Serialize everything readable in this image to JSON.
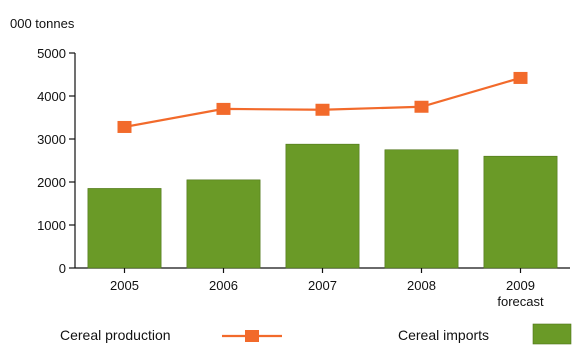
{
  "chart_data": {
    "type": "bar",
    "unit_label": "000 tonnes",
    "categories": [
      "2005",
      "2006",
      "2007",
      "2008",
      "2009"
    ],
    "category_sublabels": [
      "",
      "",
      "",
      "",
      "forecast"
    ],
    "ylim": [
      0,
      5000
    ],
    "yticks": [
      0,
      1000,
      2000,
      3000,
      4000,
      5000
    ],
    "grid": false,
    "legend_position": "bottom",
    "series": [
      {
        "name": "Cereal imports",
        "kind": "bar",
        "color": "#6a9a27",
        "values": [
          1850,
          2050,
          2880,
          2750,
          2600
        ]
      },
      {
        "name": "Cereal production",
        "kind": "line",
        "color": "#f26a2b",
        "marker": "square",
        "values": [
          3280,
          3700,
          3680,
          3750,
          4420
        ]
      }
    ]
  }
}
